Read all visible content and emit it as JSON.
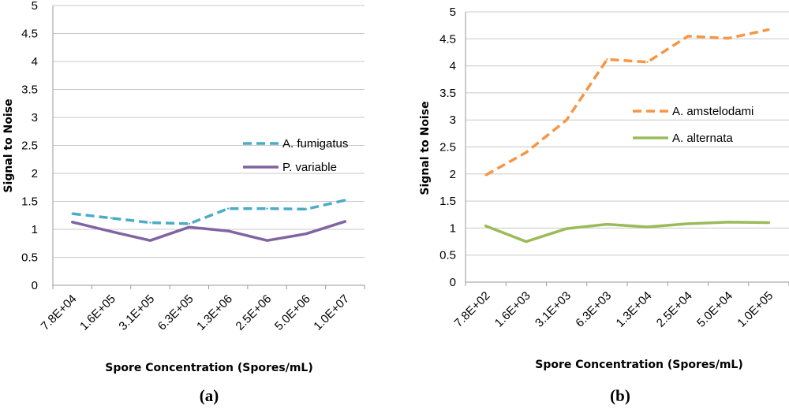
{
  "chart_data": [
    {
      "type": "line",
      "panel_label": "(a)",
      "xlabel": "Spore Concentration (Spores/mL)",
      "ylabel": "Signal to Noise",
      "ylim": [
        0,
        5
      ],
      "yticks": [
        "0",
        "0.5",
        "1",
        "1.5",
        "2",
        "2.5",
        "3",
        "3.5",
        "4",
        "4.5",
        "5"
      ],
      "grid": true,
      "legend_position": "right",
      "categories": [
        "7.8E+04",
        "1.6E+05",
        "3.1E+05",
        "6.3E+05",
        "1.3E+06",
        "2.5E+06",
        "5.0E+06",
        "1.0E+07"
      ],
      "series": [
        {
          "name": "A. fumigatus",
          "color": "#4bacc6",
          "dashed": true,
          "values": [
            1.28,
            1.2,
            1.12,
            1.1,
            1.37,
            1.37,
            1.36,
            1.52
          ]
        },
        {
          "name": "P. variable",
          "color": "#8064a2",
          "dashed": false,
          "values": [
            1.13,
            0.96,
            0.8,
            1.04,
            0.97,
            0.8,
            0.92,
            1.14
          ]
        }
      ]
    },
    {
      "type": "line",
      "panel_label": "(b)",
      "xlabel": "Spore Concentration (Spores/mL)",
      "ylabel": "Signal to Noise",
      "ylim": [
        0,
        5
      ],
      "yticks": [
        "0",
        "0.5",
        "1",
        "1.5",
        "2",
        "2.5",
        "3",
        "3.5",
        "4",
        "4.5",
        "5"
      ],
      "grid": true,
      "legend_position": "right",
      "categories": [
        "7.8E+02",
        "1.6E+03",
        "3.1E+03",
        "6.3E+03",
        "1.3E+04",
        "2.5E+04",
        "5.0E+04",
        "1.0E+05"
      ],
      "series": [
        {
          "name": "A. amstelodami",
          "color": "#f79646",
          "dashed": true,
          "values": [
            1.98,
            2.4,
            3.0,
            4.12,
            4.07,
            4.55,
            4.51,
            4.67
          ]
        },
        {
          "name": "A. alternata",
          "color": "#9bbb59",
          "dashed": false,
          "values": [
            1.04,
            0.75,
            0.99,
            1.07,
            1.02,
            1.08,
            1.11,
            1.1
          ]
        }
      ]
    }
  ]
}
